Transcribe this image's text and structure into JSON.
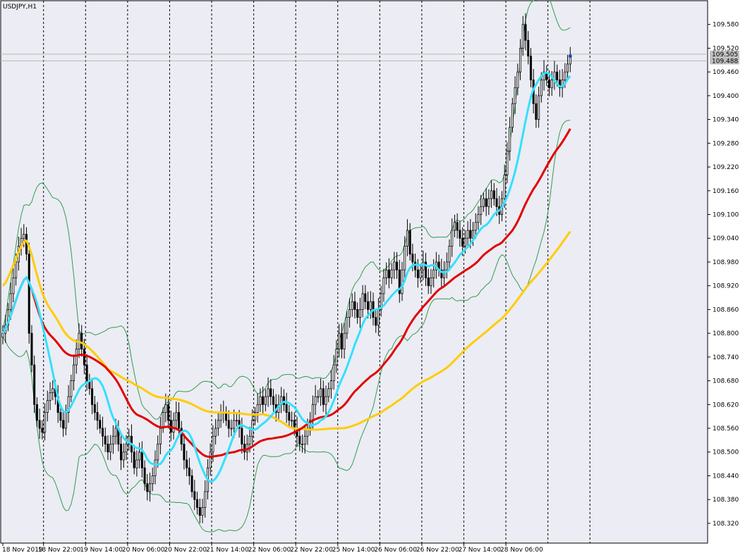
{
  "chart_data": {
    "type": "candlestick",
    "title": "USDJPY,H1",
    "symbol": "USDJPY",
    "timeframe": "H1",
    "ylim": [
      108.27,
      109.64
    ],
    "y_ticks": [
      "109.580",
      "109.520",
      "109.460",
      "109.400",
      "109.340",
      "109.280",
      "109.220",
      "109.160",
      "109.100",
      "109.040",
      "108.980",
      "108.920",
      "108.860",
      "108.800",
      "108.740",
      "108.680",
      "108.620",
      "108.560",
      "108.500",
      "108.440",
      "108.380",
      "108.320"
    ],
    "x_labels": [
      "18 Nov 2019",
      "18 Nov 22:00",
      "19 Nov 14:00",
      "20 Nov 06:00",
      "20 Nov 22:00",
      "21 Nov 14:00",
      "22 Nov 06:00",
      "22 Nov 22:00",
      "25 Nov 14:00",
      "26 Nov 06:00",
      "26 Nov 22:00",
      "27 Nov 14:00",
      "28 Nov 06:00"
    ],
    "price_labels": {
      "ask": "109.505",
      "bid": "109.488"
    },
    "grid": "vertical dashed period separators",
    "colors": {
      "background": "#ececf4",
      "candles": "#000000",
      "ma_fast": "#33e0ff",
      "ma_mid": "#e00000",
      "ma_slow": "#ffcc00",
      "bands": "#2e9e4e",
      "price_line": "#b8b8b8"
    },
    "closes": [
      108.8,
      108.82,
      108.86,
      108.9,
      108.94,
      108.98,
      109.02,
      109.04,
      109.05,
      109.0,
      108.8,
      108.72,
      108.62,
      108.58,
      108.56,
      108.55,
      108.6,
      108.63,
      108.65,
      108.66,
      108.64,
      108.6,
      108.58,
      108.56,
      108.6,
      108.64,
      108.68,
      108.72,
      108.76,
      108.8,
      108.76,
      108.72,
      108.68,
      108.66,
      108.62,
      108.6,
      108.58,
      108.56,
      108.54,
      108.52,
      108.5,
      108.52,
      108.54,
      108.56,
      108.52,
      108.48,
      108.5,
      108.52,
      108.54,
      108.5,
      108.46,
      108.48,
      108.5,
      108.46,
      108.42,
      108.4,
      108.42,
      108.44,
      108.48,
      108.52,
      108.56,
      108.6,
      108.62,
      108.58,
      108.55,
      108.58,
      108.6,
      108.56,
      108.52,
      108.48,
      108.46,
      108.44,
      108.4,
      108.38,
      108.36,
      108.34,
      108.36,
      108.4,
      108.46,
      108.5,
      108.54,
      108.56,
      108.58,
      108.6,
      108.6,
      108.58,
      108.56,
      108.56,
      108.58,
      108.58,
      108.56,
      108.52,
      108.5,
      108.52,
      108.54,
      108.58,
      108.6,
      108.62,
      108.64,
      108.62,
      108.64,
      108.66,
      108.64,
      108.62,
      108.6,
      108.62,
      108.64,
      108.62,
      108.6,
      108.58,
      108.58,
      108.56,
      108.54,
      108.52,
      108.52,
      108.54,
      108.56,
      108.58,
      108.62,
      108.64,
      108.64,
      108.66,
      108.62,
      108.64,
      108.66,
      108.68,
      108.72,
      108.76,
      108.8,
      108.76,
      108.8,
      108.84,
      108.86,
      108.88,
      108.86,
      108.84,
      108.86,
      108.9,
      108.88,
      108.86,
      108.88,
      108.84,
      108.82,
      108.86,
      108.9,
      108.94,
      108.96,
      108.94,
      108.96,
      108.98,
      108.96,
      108.9,
      108.96,
      109.02,
      109.06,
      109.0,
      108.98,
      108.96,
      108.94,
      108.96,
      108.98,
      108.94,
      108.92,
      108.94,
      108.96,
      108.98,
      108.96,
      108.94,
      108.96,
      108.98,
      109.02,
      109.06,
      109.08,
      109.06,
      109.04,
      109.02,
      109.04,
      109.06,
      109.04,
      109.06,
      109.08,
      109.1,
      109.12,
      109.14,
      109.12,
      109.14,
      109.16,
      109.14,
      109.12,
      109.1,
      109.14,
      109.2,
      109.26,
      109.32,
      109.38,
      109.42,
      109.46,
      109.52,
      109.58,
      109.54,
      109.5,
      109.44,
      109.38,
      109.34,
      109.4,
      109.44,
      109.46,
      109.44,
      109.42,
      109.44,
      109.46,
      109.44,
      109.42,
      109.44,
      109.46,
      109.48,
      109.5
    ]
  }
}
